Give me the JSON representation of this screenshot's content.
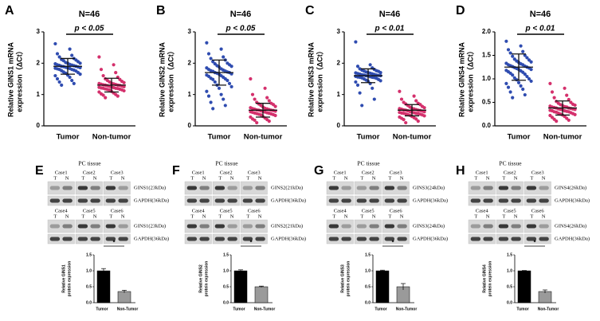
{
  "chart_data": [
    {
      "type": "dot",
      "label": "A",
      "title": "N=46",
      "annotation": "p < 0.05",
      "ylabel": [
        "Relative GINS1 mRNA",
        "expression（ΔCt）"
      ],
      "categories": [
        "Tumor",
        "Non-tumor"
      ],
      "colors": [
        "#2f4cb0",
        "#d4306c"
      ],
      "values": [
        [
          2.62,
          2.45,
          2.3,
          2.25,
          2.2,
          2.15,
          2.12,
          2.1,
          2.08,
          2.05,
          2.02,
          2.0,
          2.0,
          1.98,
          1.96,
          1.95,
          1.94,
          1.93,
          1.92,
          1.9,
          1.9,
          1.89,
          1.88,
          1.87,
          1.86,
          1.85,
          1.84,
          1.83,
          1.82,
          1.8,
          1.8,
          1.78,
          1.76,
          1.75,
          1.72,
          1.7,
          1.68,
          1.65,
          1.62,
          1.6,
          1.55,
          1.5,
          1.45,
          1.4,
          1.35,
          1.3
        ],
        [
          2.2,
          1.95,
          1.8,
          1.7,
          1.6,
          1.55,
          1.5,
          1.48,
          1.45,
          1.42,
          1.4,
          1.38,
          1.36,
          1.35,
          1.34,
          1.33,
          1.32,
          1.31,
          1.3,
          1.3,
          1.29,
          1.28,
          1.27,
          1.26,
          1.25,
          1.24,
          1.23,
          1.22,
          1.21,
          1.2,
          1.2,
          1.19,
          1.18,
          1.17,
          1.16,
          1.15,
          1.14,
          1.12,
          1.1,
          1.08,
          1.05,
          1.02,
          1.0,
          0.98,
          0.95,
          0.9
        ]
      ],
      "mean": [
        1.9,
        1.3
      ],
      "sd": [
        0.25,
        0.22
      ],
      "ylim": [
        0,
        3
      ],
      "yticks": [
        0,
        1,
        2,
        3
      ]
    },
    {
      "type": "dot",
      "label": "B",
      "title": "N=46",
      "annotation": "p < 0.05",
      "ylabel": [
        "Relative GINS2 mRNA",
        "expression（ΔCt）"
      ],
      "categories": [
        "Tumor",
        "Non-tumor"
      ],
      "colors": [
        "#2f4cb0",
        "#d4306c"
      ],
      "values": [
        [
          2.65,
          2.45,
          2.3,
          2.2,
          2.15,
          2.1,
          2.05,
          2.0,
          1.98,
          1.95,
          1.92,
          1.9,
          1.88,
          1.85,
          1.82,
          1.8,
          1.78,
          1.76,
          1.75,
          1.74,
          1.72,
          1.7,
          1.7,
          1.68,
          1.66,
          1.65,
          1.62,
          1.6,
          1.58,
          1.55,
          1.52,
          1.5,
          1.48,
          1.45,
          1.4,
          1.35,
          1.3,
          1.25,
          1.2,
          1.1,
          1.0,
          0.95,
          0.85,
          0.75,
          0.65,
          0.55
        ],
        [
          1.5,
          1.2,
          1.0,
          0.9,
          0.85,
          0.8,
          0.75,
          0.72,
          0.7,
          0.68,
          0.65,
          0.62,
          0.6,
          0.58,
          0.56,
          0.55,
          0.54,
          0.53,
          0.52,
          0.51,
          0.5,
          0.5,
          0.49,
          0.48,
          0.47,
          0.46,
          0.45,
          0.44,
          0.43,
          0.42,
          0.41,
          0.4,
          0.39,
          0.38,
          0.37,
          0.36,
          0.35,
          0.33,
          0.3,
          0.28,
          0.25,
          0.22,
          0.2,
          0.18,
          0.15,
          0.1
        ]
      ],
      "mean": [
        1.7,
        0.5
      ],
      "sd": [
        0.4,
        0.22
      ],
      "ylim": [
        0,
        3
      ],
      "yticks": [
        0,
        1,
        2,
        3
      ]
    },
    {
      "type": "dot",
      "label": "C",
      "title": "N=46",
      "annotation": "p < 0.01",
      "ylabel": [
        "Relative GINS3 mRNA",
        "expression（ΔCt）"
      ],
      "categories": [
        "Tumor",
        "Non-tumor"
      ],
      "colors": [
        "#2f4cb0",
        "#d4306c"
      ],
      "values": [
        [
          2.68,
          1.95,
          1.9,
          1.85,
          1.82,
          1.8,
          1.78,
          1.76,
          1.75,
          1.74,
          1.72,
          1.7,
          1.7,
          1.69,
          1.68,
          1.67,
          1.66,
          1.65,
          1.64,
          1.63,
          1.62,
          1.62,
          1.61,
          1.6,
          1.6,
          1.59,
          1.58,
          1.57,
          1.56,
          1.55,
          1.55,
          1.54,
          1.53,
          1.52,
          1.5,
          1.48,
          1.46,
          1.44,
          1.42,
          1.4,
          1.35,
          1.3,
          1.2,
          1.05,
          0.85,
          0.65
        ],
        [
          1.1,
          0.95,
          0.85,
          0.8,
          0.75,
          0.72,
          0.7,
          0.68,
          0.65,
          0.62,
          0.6,
          0.58,
          0.56,
          0.55,
          0.54,
          0.53,
          0.52,
          0.51,
          0.5,
          0.5,
          0.49,
          0.48,
          0.47,
          0.46,
          0.45,
          0.44,
          0.43,
          0.42,
          0.41,
          0.4,
          0.4,
          0.39,
          0.38,
          0.37,
          0.36,
          0.35,
          0.34,
          0.32,
          0.3,
          0.28,
          0.26,
          0.24,
          0.22,
          0.2,
          0.15,
          0.1
        ]
      ],
      "mean": [
        1.6,
        0.5
      ],
      "sd": [
        0.22,
        0.18
      ],
      "ylim": [
        0,
        3
      ],
      "yticks": [
        0,
        1,
        2,
        3
      ]
    },
    {
      "type": "dot",
      "label": "D",
      "title": "N=46",
      "annotation": "p < 0.01",
      "ylabel": [
        "Relative GINS4 mRNA",
        "expression（ΔCt）"
      ],
      "categories": [
        "Tumor",
        "Non-tumor"
      ],
      "colors": [
        "#2f4cb0",
        "#d4306c"
      ],
      "values": [
        [
          1.8,
          1.7,
          1.62,
          1.58,
          1.55,
          1.5,
          1.48,
          1.45,
          1.42,
          1.4,
          1.38,
          1.36,
          1.35,
          1.33,
          1.32,
          1.3,
          1.3,
          1.28,
          1.27,
          1.26,
          1.25,
          1.24,
          1.23,
          1.22,
          1.2,
          1.2,
          1.18,
          1.17,
          1.15,
          1.14,
          1.12,
          1.1,
          1.08,
          1.05,
          1.02,
          1.0,
          0.98,
          0.95,
          0.92,
          0.9,
          0.85,
          0.82,
          0.78,
          0.72,
          0.66,
          0.6
        ],
        [
          0.9,
          0.8,
          0.72,
          0.65,
          0.6,
          0.56,
          0.52,
          0.5,
          0.48,
          0.46,
          0.45,
          0.44,
          0.43,
          0.42,
          0.41,
          0.4,
          0.4,
          0.39,
          0.38,
          0.38,
          0.37,
          0.36,
          0.36,
          0.35,
          0.35,
          0.34,
          0.33,
          0.32,
          0.32,
          0.31,
          0.3,
          0.3,
          0.29,
          0.28,
          0.27,
          0.26,
          0.25,
          0.24,
          0.23,
          0.22,
          0.2,
          0.18,
          0.16,
          0.14,
          0.12,
          0.1
        ]
      ],
      "mean": [
        1.25,
        0.38
      ],
      "sd": [
        0.28,
        0.15
      ],
      "ylim": [
        0,
        2
      ],
      "yticks": [
        {
          "value": 0,
          "label": "0.0"
        },
        {
          "value": 0.5,
          "label": "0.5"
        },
        {
          "value": 1,
          "label": "1.0"
        },
        {
          "value": 1.5,
          "label": "1.5"
        },
        {
          "value": 2,
          "label": "2.0"
        }
      ]
    },
    {
      "type": "bar",
      "label": "E",
      "annotation": "*",
      "ylabel": [
        "Relative GINS1",
        "protein expression"
      ],
      "categories": [
        "Tumor",
        "Non-Tumor"
      ],
      "values": [
        1.0,
        0.35
      ],
      "errors": [
        0.07,
        0.04
      ],
      "colors": [
        "#000000",
        "#9a9a9a"
      ],
      "ylim": [
        0,
        1.5
      ],
      "yticks": [
        {
          "value": 0,
          "label": "0.0"
        },
        {
          "value": 0.5,
          "label": "0.5"
        },
        {
          "value": 1,
          "label": "1.0"
        },
        {
          "value": 1.5,
          "label": "1.5"
        }
      ]
    },
    {
      "type": "bar",
      "label": "F",
      "annotation": "*",
      "ylabel": [
        "Relative GINS2",
        "protein expression"
      ],
      "categories": [
        "Tumor",
        "Non-Tumor"
      ],
      "values": [
        1.0,
        0.5
      ],
      "errors": [
        0.03,
        0.02
      ],
      "colors": [
        "#000000",
        "#9a9a9a"
      ],
      "ylim": [
        0,
        1.5
      ],
      "yticks": [
        {
          "value": 0,
          "label": "0.0"
        },
        {
          "value": 0.5,
          "label": "0.5"
        },
        {
          "value": 1,
          "label": "1.0"
        },
        {
          "value": 1.5,
          "label": "1.5"
        }
      ]
    },
    {
      "type": "bar",
      "label": "G",
      "annotation": "*",
      "ylabel": [
        "Relative GINS3",
        "protein expression"
      ],
      "categories": [
        "Tumor",
        "Non-Tumor"
      ],
      "values": [
        1.0,
        0.5
      ],
      "errors": [
        0.02,
        0.1
      ],
      "colors": [
        "#000000",
        "#9a9a9a"
      ],
      "ylim": [
        0,
        1.5
      ],
      "yticks": [
        {
          "value": 0,
          "label": "0.0"
        },
        {
          "value": 0.5,
          "label": "0.5"
        },
        {
          "value": 1,
          "label": "1.0"
        },
        {
          "value": 1.5,
          "label": "1.5"
        }
      ]
    },
    {
      "type": "bar",
      "label": "H",
      "annotation": "*",
      "ylabel": [
        "Relative GINS4",
        "protein expression"
      ],
      "categories": [
        "Tumor",
        "Non-Tumor"
      ],
      "values": [
        1.0,
        0.35
      ],
      "errors": [
        0.01,
        0.05
      ],
      "colors": [
        "#000000",
        "#9a9a9a"
      ],
      "ylim": [
        0,
        1.5
      ],
      "yticks": [
        {
          "value": 0,
          "label": "0.0"
        },
        {
          "value": 0.5,
          "label": "0.5"
        },
        {
          "value": 1,
          "label": "1.0"
        },
        {
          "value": 1.5,
          "label": "1.5"
        }
      ]
    }
  ],
  "blots": [
    {
      "title": "PC tissue",
      "cases": [
        "Case1",
        "Case2",
        "Case3",
        "Case4",
        "Case5",
        "Case6"
      ],
      "lanes": [
        "T",
        "N"
      ],
      "proteins": [
        "GINS1(23kDa)",
        "GAPDH(36kDa)"
      ]
    },
    {
      "title": "PC tissue",
      "cases": [
        "Case1",
        "Case2",
        "Case3",
        "Case4",
        "Case5",
        "Case6"
      ],
      "lanes": [
        "T",
        "N"
      ],
      "proteins": [
        "GINS2(21kDa)",
        "GAPDH(36kDa)"
      ]
    },
    {
      "title": "PC tissue",
      "cases": [
        "Case1",
        "Case2",
        "Case3",
        "Case4",
        "Case5",
        "Case6"
      ],
      "lanes": [
        "T",
        "N"
      ],
      "proteins": [
        "GINS3(24kDa)",
        "GAPDH(36kDa)"
      ]
    },
    {
      "title": "PC tissue",
      "cases": [
        "Case1",
        "Case2",
        "Case3",
        "Case4",
        "Case5",
        "Case6"
      ],
      "lanes": [
        "T",
        "N"
      ],
      "proteins": [
        "GINS4(26kDa)",
        "GAPDH(36kDa)"
      ]
    }
  ]
}
